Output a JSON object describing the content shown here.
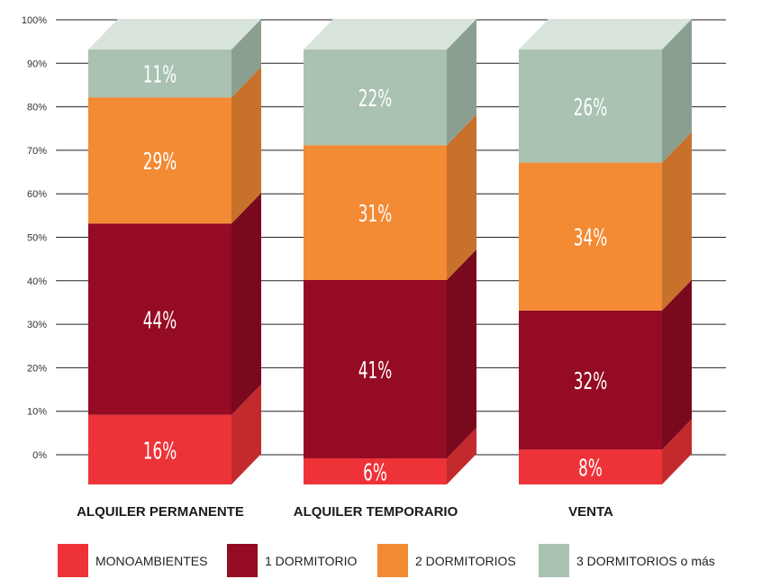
{
  "chart_data": {
    "type": "bar",
    "stacked": true,
    "style": "3d",
    "categories": [
      "ALQUILER PERMANENTE",
      "ALQUILER TEMPORARIO",
      "VENTA"
    ],
    "series": [
      {
        "name": "MONOAMBIENTES",
        "values": [
          16,
          6,
          8
        ],
        "color": "#ee3338"
      },
      {
        "name": "1 DORMITORIO",
        "values": [
          44,
          41,
          32
        ],
        "color": "#940b23"
      },
      {
        "name": "2 DORMITORIOS",
        "values": [
          29,
          31,
          34
        ],
        "color": "#f38a34"
      },
      {
        "name": "3 DORMITORIOS o más",
        "values": [
          11,
          22,
          26
        ],
        "color": "#a9c2b1"
      }
    ],
    "value_suffix": "%",
    "yticks": [
      "0%",
      "10%",
      "20%",
      "30%",
      "40%",
      "50%",
      "60%",
      "70%",
      "80%",
      "90%",
      "100%"
    ],
    "ylim": [
      0,
      100
    ],
    "grid": true,
    "legend_position": "bottom"
  }
}
